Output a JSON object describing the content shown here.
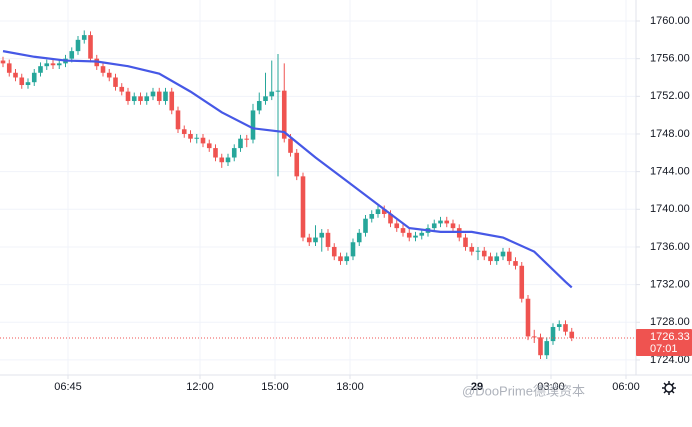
{
  "chart_data": {
    "type": "candlestick",
    "xlim": [
      -0.48,
      101.28
    ],
    "xticks": [
      {
        "value": 10.4,
        "label": "06:45"
      },
      {
        "value": 31.52,
        "label": "12:00"
      },
      {
        "value": 43.52,
        "label": "15:00"
      },
      {
        "value": 55.52,
        "label": "18:00"
      },
      {
        "value": 75.84,
        "label": "29"
      },
      {
        "value": 87.68,
        "label": "03:00"
      },
      {
        "value": 99.68,
        "label": "06:00"
      }
    ],
    "ylim": [
      1722.4,
      1762.23
    ],
    "yticks": [
      {
        "value": 1724,
        "label": "1724.00"
      },
      {
        "value": 1728,
        "label": "1728.00"
      },
      {
        "value": 1732,
        "label": "1732.00"
      },
      {
        "value": 1736,
        "label": "1736.00"
      },
      {
        "value": 1740,
        "label": "1740.00"
      },
      {
        "value": 1744,
        "label": "1744.00"
      },
      {
        "value": 1748,
        "label": "1748.00"
      },
      {
        "value": 1752,
        "label": "1752.00"
      },
      {
        "value": 1756,
        "label": "1756.00"
      },
      {
        "value": 1760,
        "label": "1760.00"
      }
    ],
    "grid": true,
    "up_color": "#26a69a",
    "down_color": "#ef5350",
    "last_price": {
      "value": 1726.33,
      "label": "1726.33"
    },
    "countdown": "07:01",
    "watermark": "@DooPrime德璞资本",
    "series": [
      {
        "x": [
          0,
          1,
          2,
          3,
          4,
          5,
          6,
          7,
          8,
          9,
          10,
          11,
          12,
          13,
          14,
          15,
          16,
          17,
          18,
          19,
          20,
          21,
          22,
          23,
          24,
          25,
          26,
          27,
          28,
          29,
          30,
          31,
          32,
          33,
          34,
          35,
          36,
          37,
          38,
          39,
          40,
          41,
          42,
          43,
          44,
          45,
          46,
          47,
          48,
          49,
          50,
          51,
          52,
          53,
          54,
          55,
          56,
          57,
          58,
          59,
          60,
          61,
          62,
          63,
          64,
          65,
          66,
          67,
          68,
          69,
          70,
          71,
          72,
          73,
          74,
          75,
          76,
          77,
          78,
          79,
          80,
          81,
          82,
          83,
          84,
          85,
          86,
          87,
          88,
          89,
          90,
          91
        ],
        "ohlc": [
          [
            1755.8,
            1756.2,
            1755.1,
            1755.5
          ],
          [
            1755.5,
            1755.9,
            1754.1,
            1754.5
          ],
          [
            1754.5,
            1754.9,
            1753.6,
            1754
          ],
          [
            1754,
            1754.4,
            1752.8,
            1753.2
          ],
          [
            1753.2,
            1753.9,
            1752.8,
            1753.5
          ],
          [
            1753.5,
            1754.9,
            1753.1,
            1754.5
          ],
          [
            1754.5,
            1755.6,
            1754.1,
            1755.2
          ],
          [
            1755.2,
            1755.9,
            1754.8,
            1755.5
          ],
          [
            1755.5,
            1755.9,
            1754.9,
            1755.3
          ],
          [
            1755.3,
            1755.9,
            1754.9,
            1755.5
          ],
          [
            1755.5,
            1756.4,
            1755.1,
            1756
          ],
          [
            1756,
            1757.2,
            1755.6,
            1756.8
          ],
          [
            1756.8,
            1758.4,
            1756.4,
            1758
          ],
          [
            1758,
            1759,
            1757.6,
            1758.5
          ],
          [
            1758.5,
            1758.9,
            1755.6,
            1756
          ],
          [
            1756,
            1756.4,
            1754.8,
            1755.2
          ],
          [
            1755.2,
            1755.6,
            1754.1,
            1754.5
          ],
          [
            1754.5,
            1754.9,
            1753.6,
            1754
          ],
          [
            1754,
            1754.4,
            1752.6,
            1753
          ],
          [
            1753,
            1753.4,
            1752.1,
            1752.5
          ],
          [
            1752.5,
            1752.9,
            1751.1,
            1751.5
          ],
          [
            1751.5,
            1752.4,
            1751.1,
            1752
          ],
          [
            1752,
            1752.4,
            1751.1,
            1751.5
          ],
          [
            1751.5,
            1752.4,
            1751.1,
            1752
          ],
          [
            1752,
            1752.9,
            1751.6,
            1752.5
          ],
          [
            1752.5,
            1752.9,
            1751.1,
            1751.5
          ],
          [
            1751.5,
            1752.9,
            1751.1,
            1752.5
          ],
          [
            1752.5,
            1752.9,
            1750.1,
            1750.5
          ],
          [
            1750.5,
            1750.9,
            1748.1,
            1748.5
          ],
          [
            1748.5,
            1748.9,
            1747.6,
            1748
          ],
          [
            1748,
            1748.4,
            1747.1,
            1747.5
          ],
          [
            1747.5,
            1748,
            1747,
            1747.6
          ],
          [
            1747.6,
            1748,
            1746.6,
            1747
          ],
          [
            1747,
            1747.4,
            1746.1,
            1746.5
          ],
          [
            1746.5,
            1746.9,
            1745.1,
            1745.5
          ],
          [
            1745.5,
            1745.9,
            1744.4,
            1745
          ],
          [
            1745,
            1745.9,
            1744.6,
            1745.5
          ],
          [
            1745.5,
            1746.9,
            1745.1,
            1746.5
          ],
          [
            1746.5,
            1747.9,
            1746.1,
            1747.5
          ],
          [
            1747.5,
            1747.9,
            1746.6,
            1747.4
          ],
          [
            1747.4,
            1751.2,
            1747,
            1750.5
          ],
          [
            1750.5,
            1752.4,
            1750.1,
            1751.5
          ],
          [
            1751.5,
            1754.5,
            1751.1,
            1752
          ],
          [
            1752,
            1755.8,
            1751.6,
            1752.5
          ],
          [
            1752.5,
            1756.5,
            1743.5,
            1752.6
          ],
          [
            1752.6,
            1755.5,
            1747.1,
            1747.5
          ],
          [
            1747.5,
            1748,
            1745.6,
            1746
          ],
          [
            1746,
            1746.4,
            1743.1,
            1743.5
          ],
          [
            1743.5,
            1743.9,
            1736.6,
            1737
          ],
          [
            1737,
            1737.4,
            1736.1,
            1736.5
          ],
          [
            1736.5,
            1738.3,
            1736.1,
            1737
          ],
          [
            1737,
            1737.9,
            1735.5,
            1737.5
          ],
          [
            1737.5,
            1737.9,
            1735.6,
            1736
          ],
          [
            1736,
            1736.4,
            1734.6,
            1735
          ],
          [
            1735,
            1735.4,
            1734.1,
            1734.5
          ],
          [
            1734.5,
            1735.4,
            1734.1,
            1735
          ],
          [
            1735,
            1736.9,
            1734.6,
            1736.5
          ],
          [
            1736.5,
            1737.9,
            1736.1,
            1737.5
          ],
          [
            1737.5,
            1739.4,
            1737.1,
            1739
          ],
          [
            1739,
            1739.9,
            1738.6,
            1739.5
          ],
          [
            1739.5,
            1740.4,
            1739.1,
            1740
          ],
          [
            1740,
            1740.4,
            1739.1,
            1739.5
          ],
          [
            1739.5,
            1739.9,
            1738.1,
            1738.5
          ],
          [
            1738.5,
            1738.9,
            1737.6,
            1738
          ],
          [
            1738,
            1738.4,
            1737.1,
            1737.5
          ],
          [
            1737.5,
            1737.9,
            1736.6,
            1737
          ],
          [
            1737,
            1737.6,
            1736.6,
            1737.2
          ],
          [
            1737.2,
            1737.9,
            1736.8,
            1737.5
          ],
          [
            1737.5,
            1738.4,
            1737.1,
            1738
          ],
          [
            1738,
            1738.9,
            1737.6,
            1738.5
          ],
          [
            1738.5,
            1739.2,
            1738.1,
            1738.8
          ],
          [
            1738.8,
            1739.2,
            1738.1,
            1738.5
          ],
          [
            1738.5,
            1738.9,
            1737.6,
            1738
          ],
          [
            1738,
            1738.4,
            1736.6,
            1737
          ],
          [
            1737,
            1737.4,
            1735.6,
            1736
          ],
          [
            1736,
            1736.4,
            1735.1,
            1735.5
          ],
          [
            1735.5,
            1736,
            1734.6,
            1735.6
          ],
          [
            1735.6,
            1736,
            1734.6,
            1735
          ],
          [
            1735,
            1735.4,
            1734.1,
            1734.5
          ],
          [
            1734.5,
            1735.4,
            1734.1,
            1735
          ],
          [
            1735,
            1735.9,
            1734.6,
            1735.5
          ],
          [
            1735.5,
            1735.9,
            1734.1,
            1734.5
          ],
          [
            1734.5,
            1734.9,
            1733.6,
            1734
          ],
          [
            1734,
            1734.4,
            1730.1,
            1730.5
          ],
          [
            1730.5,
            1730.9,
            1726.1,
            1726.5
          ],
          [
            1726.5,
            1727.2,
            1725.8,
            1726.4
          ],
          [
            1726.4,
            1726.8,
            1724.1,
            1724.5
          ],
          [
            1724.5,
            1726.4,
            1724.1,
            1726
          ],
          [
            1726,
            1727.9,
            1725.6,
            1727.5
          ],
          [
            1727.5,
            1728.2,
            1727.1,
            1727.8
          ],
          [
            1727.8,
            1728.2,
            1726.6,
            1727
          ],
          [
            1727,
            1727.4,
            1726,
            1726.33
          ]
        ]
      },
      {
        "x": [
          0,
          5,
          10,
          15,
          20,
          25,
          30,
          35,
          40,
          45,
          50,
          55,
          60,
          65,
          70,
          75,
          80,
          85,
          90,
          91
        ],
        "values": [
          1756.8,
          1756.2,
          1755.8,
          1755.7,
          1755.2,
          1754.4,
          1752.5,
          1750.3,
          1748.6,
          1748.2,
          1745.5,
          1743,
          1740.5,
          1738,
          1737.6,
          1737.6,
          1737,
          1735.5,
          1732.3,
          1731.7
        ],
        "color": "#4658e6"
      }
    ]
  }
}
